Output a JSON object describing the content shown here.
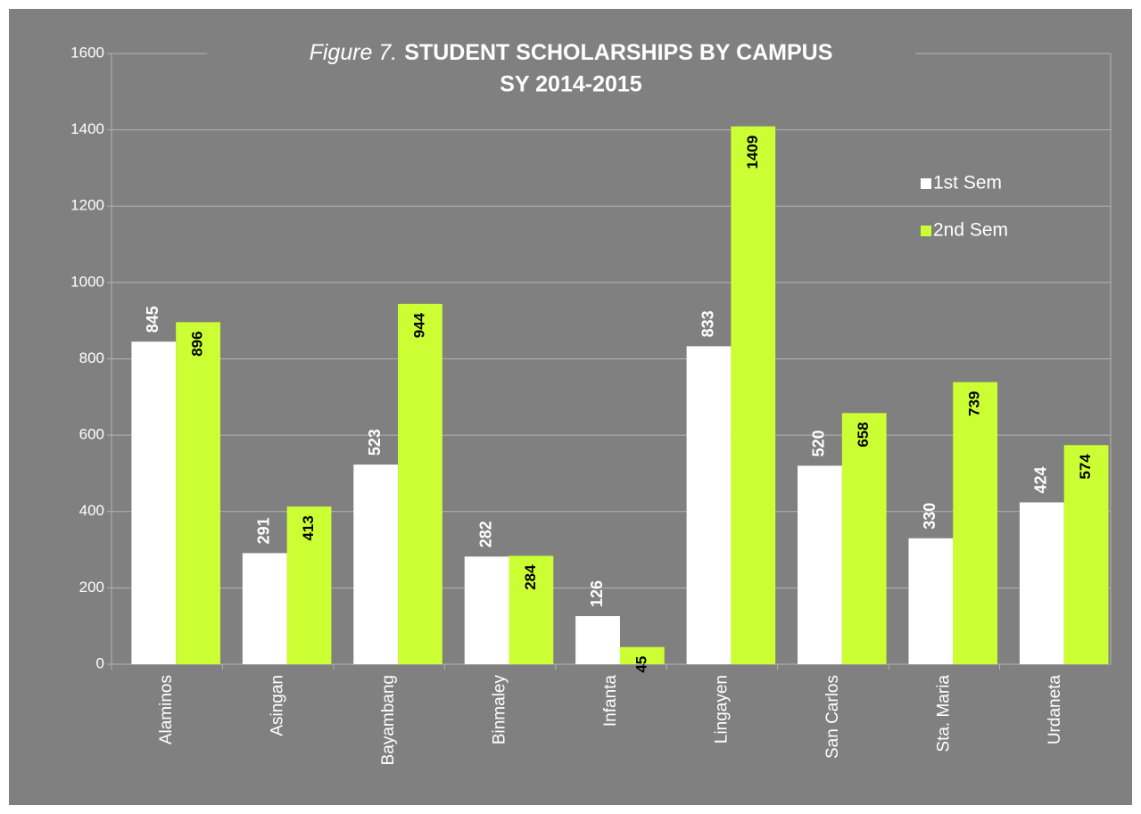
{
  "chart_data": {
    "type": "bar",
    "figure_label": "Figure 7.",
    "title": "STUDENT SCHOLARSHIPS BY CAMPUS",
    "subtitle": "SY 2014-2015",
    "categories": [
      "Alaminos",
      "Asingan",
      "Bayambang",
      "Binmaley",
      "Infanta",
      "Lingayen",
      "San Carlos",
      "Sta. Maria",
      "Urdaneta"
    ],
    "series": [
      {
        "name": "1st Sem",
        "color": "#ffffff",
        "values": [
          845,
          291,
          523,
          282,
          126,
          833,
          520,
          330,
          424
        ]
      },
      {
        "name": "2nd Sem",
        "color": "#ccff33",
        "values": [
          896,
          413,
          944,
          284,
          45,
          1409,
          658,
          739,
          574
        ]
      }
    ],
    "ylim": [
      0,
      1600
    ],
    "yticks": [
      0,
      200,
      400,
      600,
      800,
      1000,
      1200,
      1400,
      1600
    ],
    "grid": true,
    "legend": "upper right"
  }
}
